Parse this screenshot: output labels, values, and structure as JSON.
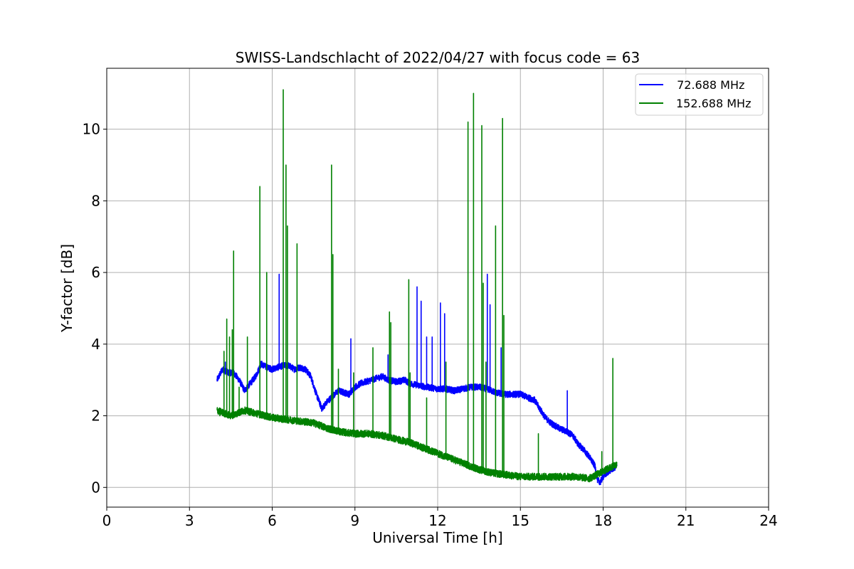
{
  "chart_data": {
    "type": "line",
    "title": "SWISS-Landschlacht of 2022/04/27 with focus code = 63",
    "xlabel": "Universal Time [h]",
    "ylabel": "Y-factor [dB]",
    "xlim": [
      0,
      24
    ],
    "ylim": [
      -0.55,
      11.7
    ],
    "xticks": [
      0,
      3,
      6,
      9,
      12,
      15,
      18,
      21,
      24
    ],
    "yticks": [
      0,
      2,
      4,
      6,
      8,
      10
    ],
    "grid": true,
    "legend_position": "top-right",
    "series": [
      {
        "name": " 72.688 MHz",
        "color": "#0000ff",
        "x_range": [
          4.0,
          18.5
        ],
        "baseline": [
          [
            4.0,
            3.0
          ],
          [
            4.2,
            3.3
          ],
          [
            4.4,
            3.2
          ],
          [
            4.6,
            3.2
          ],
          [
            4.8,
            3.0
          ],
          [
            5.0,
            2.7
          ],
          [
            5.2,
            2.9
          ],
          [
            5.4,
            3.1
          ],
          [
            5.6,
            3.45
          ],
          [
            5.8,
            3.35
          ],
          [
            6.0,
            3.3
          ],
          [
            6.2,
            3.35
          ],
          [
            6.4,
            3.4
          ],
          [
            6.6,
            3.4
          ],
          [
            6.8,
            3.3
          ],
          [
            7.0,
            3.35
          ],
          [
            7.2,
            3.3
          ],
          [
            7.4,
            3.1
          ],
          [
            7.6,
            2.6
          ],
          [
            7.8,
            2.2
          ],
          [
            8.0,
            2.4
          ],
          [
            8.2,
            2.55
          ],
          [
            8.4,
            2.7
          ],
          [
            8.6,
            2.65
          ],
          [
            8.8,
            2.6
          ],
          [
            9.0,
            2.8
          ],
          [
            9.2,
            2.9
          ],
          [
            9.4,
            2.95
          ],
          [
            9.6,
            3.0
          ],
          [
            9.8,
            3.05
          ],
          [
            10.0,
            3.1
          ],
          [
            10.2,
            3.0
          ],
          [
            10.5,
            2.95
          ],
          [
            10.8,
            3.0
          ],
          [
            11.0,
            2.9
          ],
          [
            11.3,
            2.85
          ],
          [
            11.6,
            2.8
          ],
          [
            12.0,
            2.75
          ],
          [
            12.3,
            2.75
          ],
          [
            12.6,
            2.7
          ],
          [
            12.9,
            2.75
          ],
          [
            13.2,
            2.8
          ],
          [
            13.5,
            2.8
          ],
          [
            13.8,
            2.75
          ],
          [
            14.1,
            2.65
          ],
          [
            14.4,
            2.6
          ],
          [
            14.7,
            2.6
          ],
          [
            15.0,
            2.6
          ],
          [
            15.3,
            2.5
          ],
          [
            15.5,
            2.45
          ],
          [
            15.7,
            2.2
          ],
          [
            15.9,
            1.95
          ],
          [
            16.1,
            1.8
          ],
          [
            16.4,
            1.65
          ],
          [
            16.7,
            1.55
          ],
          [
            16.9,
            1.45
          ],
          [
            17.1,
            1.2
          ],
          [
            17.3,
            1.05
          ],
          [
            17.5,
            0.85
          ],
          [
            17.7,
            0.6
          ],
          [
            17.8,
            0.2
          ],
          [
            17.9,
            0.15
          ],
          [
            18.0,
            0.3
          ],
          [
            18.2,
            0.45
          ],
          [
            18.5,
            0.6
          ]
        ],
        "noise": 0.09,
        "spikes": [
          [
            4.3,
            3.5
          ],
          [
            6.25,
            5.95
          ],
          [
            8.85,
            4.15
          ],
          [
            10.2,
            3.7
          ],
          [
            11.25,
            5.6
          ],
          [
            11.4,
            5.2
          ],
          [
            11.6,
            4.2
          ],
          [
            11.8,
            4.2
          ],
          [
            12.1,
            5.15
          ],
          [
            12.25,
            4.85
          ],
          [
            13.8,
            5.95
          ],
          [
            13.9,
            5.1
          ],
          [
            14.3,
            3.9
          ],
          [
            16.7,
            2.7
          ]
        ]
      },
      {
        "name": "152.688 MHz",
        "color": "#008000",
        "x_range": [
          4.0,
          18.5
        ],
        "baseline": [
          [
            4.0,
            2.15
          ],
          [
            4.5,
            2.0
          ],
          [
            5.0,
            2.15
          ],
          [
            5.5,
            2.05
          ],
          [
            6.0,
            1.95
          ],
          [
            6.5,
            1.9
          ],
          [
            7.0,
            1.85
          ],
          [
            7.5,
            1.8
          ],
          [
            8.0,
            1.65
          ],
          [
            8.5,
            1.55
          ],
          [
            9.0,
            1.5
          ],
          [
            9.5,
            1.5
          ],
          [
            10.0,
            1.45
          ],
          [
            10.5,
            1.35
          ],
          [
            11.0,
            1.25
          ],
          [
            11.5,
            1.1
          ],
          [
            12.0,
            0.95
          ],
          [
            12.5,
            0.8
          ],
          [
            13.0,
            0.65
          ],
          [
            13.5,
            0.5
          ],
          [
            14.0,
            0.4
          ],
          [
            14.5,
            0.35
          ],
          [
            15.0,
            0.3
          ],
          [
            15.5,
            0.3
          ],
          [
            16.0,
            0.3
          ],
          [
            16.5,
            0.3
          ],
          [
            17.0,
            0.3
          ],
          [
            17.5,
            0.25
          ],
          [
            18.0,
            0.45
          ],
          [
            18.5,
            0.65
          ]
        ],
        "noise": 0.1,
        "spikes": [
          [
            4.1,
            2.0
          ],
          [
            4.25,
            3.8
          ],
          [
            4.35,
            4.7
          ],
          [
            4.45,
            4.2
          ],
          [
            4.55,
            4.4
          ],
          [
            4.6,
            6.6
          ],
          [
            4.8,
            2.8
          ],
          [
            5.1,
            4.2
          ],
          [
            5.55,
            8.4
          ],
          [
            5.8,
            6.0
          ],
          [
            6.4,
            11.1
          ],
          [
            6.5,
            9.0
          ],
          [
            6.55,
            7.3
          ],
          [
            6.9,
            6.8
          ],
          [
            8.15,
            9.0
          ],
          [
            8.2,
            6.5
          ],
          [
            8.4,
            3.3
          ],
          [
            8.95,
            3.2
          ],
          [
            9.65,
            3.9
          ],
          [
            10.25,
            4.9
          ],
          [
            10.3,
            4.6
          ],
          [
            10.95,
            5.8
          ],
          [
            11.0,
            3.2
          ],
          [
            11.6,
            2.5
          ],
          [
            12.3,
            3.5
          ],
          [
            13.1,
            10.2
          ],
          [
            13.3,
            11.0
          ],
          [
            13.6,
            10.1
          ],
          [
            13.65,
            5.7
          ],
          [
            13.75,
            3.5
          ],
          [
            14.1,
            7.3
          ],
          [
            14.35,
            10.3
          ],
          [
            14.4,
            4.8
          ],
          [
            15.65,
            1.5
          ],
          [
            17.95,
            1.0
          ],
          [
            18.35,
            3.6
          ]
        ]
      }
    ]
  }
}
